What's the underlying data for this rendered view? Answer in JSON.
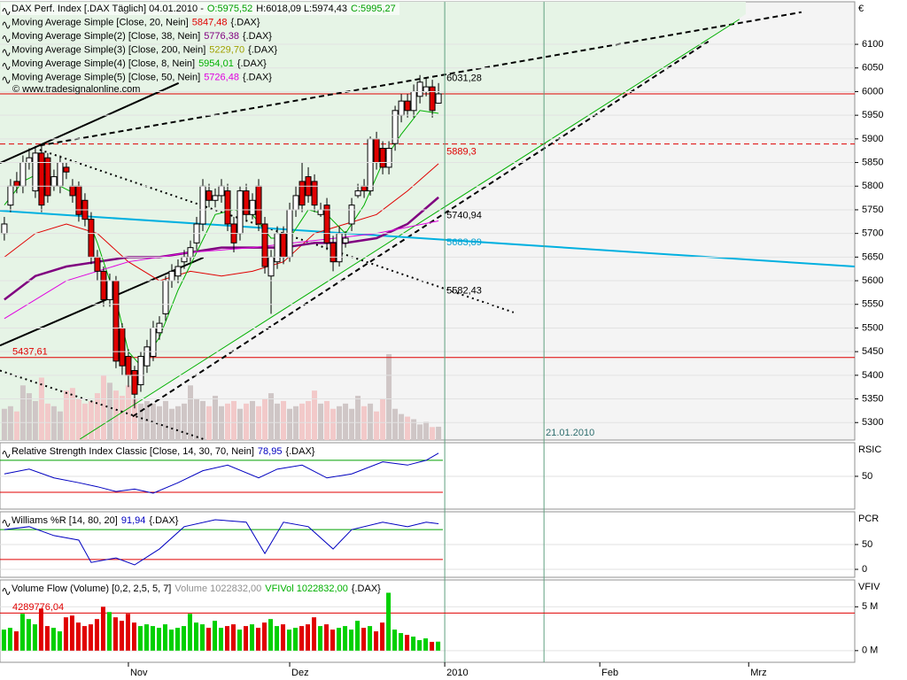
{
  "chart_data": [
    {
      "type": "candlestick",
      "title_parts": [
        {
          "text": "DAX Perf. Index [.DAX Täglich] 04.01.2010 -",
          "color": "#000000"
        },
        {
          "text": "O:5975,52",
          "color": "#00a000"
        },
        {
          "text": "H:6018,09 L:5974,43",
          "color": "#000000"
        },
        {
          "text": "C:5995,27",
          "color": "#00a000"
        }
      ],
      "source": "© www.tradesignalonline.com",
      "axis_label": "€",
      "xlim": [
        -0.7,
        137.1
      ],
      "ylim": [
        5263,
        6190
      ],
      "yticks": [
        5300,
        5350,
        5400,
        5450,
        5500,
        5550,
        5600,
        5650,
        5700,
        5750,
        5800,
        5850,
        5900,
        5950,
        6000,
        6050,
        6100
      ],
      "grid": true,
      "up_color": "#ffffff",
      "down_color": "#e00000",
      "open": [
        5700,
        5760,
        5810,
        5800,
        5850,
        5790,
        5870,
        5860,
        5800,
        5800,
        5840,
        5800,
        5800,
        5770,
        5730,
        5650,
        5620,
        5560,
        5600,
        5500,
        5440,
        5410,
        5380,
        5420,
        5440,
        5490,
        5530,
        5600,
        5610,
        5640,
        5650,
        5680,
        5720,
        5790,
        5770,
        5780,
        5790,
        5720,
        5700,
        5790,
        5740,
        5800,
        5720,
        5610,
        5640,
        5700,
        5650,
        5750,
        5810,
        5820,
        5810,
        5740,
        5760,
        5680,
        5640,
        5680,
        5720,
        5780,
        5800,
        5790,
        5900,
        5880,
        5840,
        5890,
        5950,
        5980,
        5960,
        5990,
        6000,
        6010,
        5975.52
      ],
      "high": [
        5735,
        5815,
        5830,
        5865,
        5880,
        5885,
        5885,
        5870,
        5835,
        5865,
        5850,
        5815,
        5810,
        5785,
        5745,
        5665,
        5630,
        5615,
        5610,
        5510,
        5455,
        5420,
        5450,
        5475,
        5515,
        5525,
        5610,
        5635,
        5645,
        5665,
        5685,
        5735,
        5815,
        5805,
        5795,
        5815,
        5805,
        5735,
        5800,
        5805,
        5785,
        5815,
        5735,
        5665,
        5715,
        5715,
        5765,
        5800,
        5850,
        5840,
        5825,
        5765,
        5775,
        5695,
        5715,
        5705,
        5775,
        5805,
        5815,
        5905,
        5915,
        5895,
        5895,
        5970,
        5995,
        5995,
        6015,
        6035,
        6030,
        6025,
        6018.09
      ],
      "low": [
        5685,
        5745,
        5785,
        5785,
        5835,
        5775,
        5745,
        5765,
        5790,
        5785,
        5815,
        5765,
        5725,
        5715,
        5635,
        5600,
        5545,
        5545,
        5415,
        5400,
        5375,
        5330,
        5365,
        5405,
        5430,
        5475,
        5515,
        5585,
        5595,
        5625,
        5640,
        5665,
        5705,
        5755,
        5755,
        5765,
        5705,
        5660,
        5685,
        5725,
        5730,
        5705,
        5615,
        5530,
        5625,
        5635,
        5640,
        5735,
        5745,
        5765,
        5745,
        5735,
        5665,
        5620,
        5630,
        5670,
        5705,
        5775,
        5775,
        5780,
        5835,
        5825,
        5825,
        5875,
        5935,
        5945,
        5945,
        5975,
        5990,
        5945,
        5974.43
      ],
      "close": [
        5720,
        5800,
        5800,
        5850,
        5860,
        5870,
        5760,
        5780,
        5820,
        5850,
        5830,
        5780,
        5740,
        5730,
        5650,
        5620,
        5560,
        5600,
        5430,
        5420,
        5400,
        5360,
        5440,
        5460,
        5500,
        5510,
        5600,
        5620,
        5630,
        5650,
        5670,
        5720,
        5800,
        5770,
        5780,
        5800,
        5720,
        5680,
        5790,
        5740,
        5770,
        5720,
        5630,
        5650,
        5700,
        5650,
        5750,
        5780,
        5760,
        5780,
        5760,
        5750,
        5680,
        5640,
        5700,
        5690,
        5760,
        5790,
        5790,
        5900,
        5850,
        5840,
        5880,
        5960,
        5980,
        5960,
        6000,
        6020,
        6010,
        5960,
        5995.27
      ],
      "legend": [
        {
          "name": "Moving Average Simple [Close, 20, Nein]",
          "legend_value": "5847,48",
          "suffix": "{.DAX}",
          "color": "#e00000",
          "x": [
            0,
            5,
            10,
            15,
            20,
            25,
            30,
            35,
            40,
            45,
            50,
            55,
            60,
            65,
            70
          ],
          "values": [
            5650,
            5700,
            5720,
            5700,
            5640,
            5600,
            5620,
            5610,
            5620,
            5640,
            5700,
            5720,
            5740,
            5790,
            5847.48
          ]
        },
        {
          "name": "Moving Average Simple(2) [Close, 38, Nein]",
          "legend_value": "5776,38",
          "suffix": "{.DAX}",
          "color": "#800080",
          "x": [
            0,
            5,
            10,
            15,
            20,
            25,
            30,
            35,
            40,
            45,
            50,
            55,
            60,
            65,
            70
          ],
          "values": [
            5560,
            5610,
            5630,
            5640,
            5650,
            5650,
            5660,
            5670,
            5670,
            5670,
            5680,
            5680,
            5690,
            5720,
            5776.38
          ]
        },
        {
          "name": "Moving Average Simple(3) [Close, 200, Nein]",
          "legend_value": "5229,70",
          "suffix": "{.DAX}",
          "color": "#a0a000",
          "x": [],
          "values": []
        },
        {
          "name": "Moving Average Simple(4) [Close, 8, Nein]",
          "legend_value": "5954,01",
          "suffix": "{.DAX}",
          "color": "#00b000",
          "x": [
            0,
            3,
            6,
            9,
            12,
            15,
            18,
            20,
            22,
            25,
            28,
            31,
            34,
            37,
            40,
            43,
            46,
            49,
            52,
            55,
            58,
            61,
            64,
            67,
            70
          ],
          "values": [
            5760,
            5810,
            5830,
            5800,
            5780,
            5680,
            5560,
            5450,
            5420,
            5480,
            5580,
            5660,
            5740,
            5750,
            5740,
            5690,
            5690,
            5750,
            5740,
            5700,
            5760,
            5850,
            5910,
            5960,
            5954.01
          ]
        },
        {
          "name": "Moving Average Simple(5) [Close, 50, Nein]",
          "legend_value": "5726,48",
          "suffix": "{.DAX}",
          "color": "#e000e0",
          "x": [
            0,
            10,
            20,
            30,
            40,
            50,
            60,
            70
          ],
          "values": [
            5520,
            5600,
            5640,
            5660,
            5670,
            5685,
            5700,
            5726.48
          ]
        }
      ],
      "trendlines": [
        {
          "x": [
            -0.7,
            28.1
          ],
          "values": [
            5849,
            6018
          ],
          "color": "#000000",
          "style": "solid"
        },
        {
          "x": [
            -0.7,
            32.1
          ],
          "values": [
            5463,
            5649
          ],
          "color": "#000000",
          "style": "solid"
        },
        {
          "x": [
            5.7,
            128.5
          ],
          "values": [
            5886,
            6168
          ],
          "color": "#000000",
          "style": "dashed"
        },
        {
          "x": [
            20.7,
            113.5
          ],
          "values": [
            5313,
            6106
          ],
          "color": "#000000",
          "style": "dashed"
        },
        {
          "x": [
            12.2,
            118.5
          ],
          "values": [
            5265,
            6153
          ],
          "color": "#00b000",
          "style": "thin"
        },
        {
          "x": [
            5.7,
            82.1
          ],
          "values": [
            5877,
            5533
          ],
          "color": "#000000",
          "style": "dotted"
        },
        {
          "x": [
            -0.7,
            32.1
          ],
          "values": [
            5410,
            5265
          ],
          "color": "#000000",
          "style": "dotted"
        },
        {
          "x": [
            -0.7,
            137.1
          ],
          "values": [
            5748,
            5630
          ],
          "color": "#00b0e0",
          "style": "solid"
        }
      ],
      "labels": [
        {
          "x": 71,
          "value": 6031.28,
          "label": "6031,28",
          "color": "#000000"
        },
        {
          "x": 71,
          "value": 5740.94,
          "label": "5740,94",
          "color": "#000000"
        },
        {
          "x": 71,
          "value": 5683.89,
          "label": "5683,89",
          "color": "#00a0d0"
        },
        {
          "x": 71,
          "value": 5582.43,
          "label": "5582,43",
          "color": "#000000"
        }
      ],
      "hlines": [
        {
          "value": 5995.27,
          "color": "#e00000",
          "style": "solid"
        },
        {
          "value": 5889.3,
          "label": "5889,3",
          "color": "#e00000",
          "style": "dashed"
        },
        {
          "value": 5437.61,
          "label": "5437,61",
          "color": "#e00000",
          "style": "solid"
        }
      ],
      "vlines": [
        {
          "x": 71,
          "color": "#60a080"
        },
        {
          "x": 87,
          "label": "21.01.2010",
          "color": "#60a080"
        }
      ]
    },
    {
      "type": "line",
      "title_parts": [
        {
          "text": "Relative Strength Index Classic [Close, 14, 30, 70, Nein]",
          "color": "#000000"
        },
        {
          "text": "78,95",
          "color": "#0000c0"
        },
        {
          "text": "{.DAX}",
          "color": "#000000"
        }
      ],
      "axis_label": "RSIC",
      "ylim": [
        9,
        92
      ],
      "yticks": [
        50
      ],
      "levels": [
        {
          "value": 70,
          "color": "#00a000"
        },
        {
          "value": 30,
          "color": "#e00000"
        }
      ],
      "series": [
        {
          "color": "#0000c0",
          "x": [
            0,
            4,
            8,
            12,
            15,
            18,
            21,
            24,
            28,
            32,
            36,
            41,
            44,
            48,
            52,
            56,
            61,
            65,
            68,
            70
          ],
          "values": [
            53,
            59,
            48,
            42,
            37,
            31,
            34,
            29,
            42,
            57,
            64,
            48,
            59,
            64,
            48,
            53,
            68,
            64,
            70,
            78.95
          ]
        }
      ]
    },
    {
      "type": "line",
      "title_parts": [
        {
          "text": "Williams %R [14, 80, 20]",
          "color": "#000000"
        },
        {
          "text": "91,94",
          "color": "#0000c0"
        },
        {
          "text": "{.DAX}",
          "color": "#000000"
        }
      ],
      "axis_label": "PCR",
      "ylim": [
        -16,
        116
      ],
      "yticks": [
        50,
        0
      ],
      "levels": [
        {
          "value": 80,
          "color": "#00a000"
        },
        {
          "value": 20,
          "color": "#e00000"
        }
      ],
      "series": [
        {
          "color": "#0000c0",
          "x": [
            0,
            4,
            8,
            12,
            14,
            18,
            21,
            25,
            29,
            34,
            39,
            42,
            45,
            49,
            53,
            56,
            61,
            65,
            68,
            70
          ],
          "values": [
            80,
            86,
            68,
            59,
            14,
            23,
            9,
            41,
            86,
            100,
            95,
            32,
            95,
            86,
            41,
            80,
            95,
            86,
            95,
            91.94
          ]
        }
      ]
    },
    {
      "type": "bar",
      "title_parts": [
        {
          "text": "Volume Flow (Volume) [0,2, 2,5, 5, 7]",
          "color": "#000000"
        },
        {
          "text": "Volume 1022832,00",
          "color": "#909090"
        },
        {
          "text": "VFIVol 1022832,00",
          "color": "#00b000"
        },
        {
          "text": "{.DAX}",
          "color": "#000000"
        }
      ],
      "axis_label": "VFIV",
      "ylim": [
        -1330000,
        8060000
      ],
      "yticks": [
        {
          "value": 5000000,
          "label": "5 M"
        },
        {
          "value": 0,
          "label": "0 M"
        }
      ],
      "up_color": "#00d000",
      "down_color": "#e00000",
      "levels": [
        {
          "value": 4289776.04,
          "label": "4289776,04",
          "color": "#e00000"
        }
      ],
      "values": [
        2400000,
        2600000,
        2200000,
        4200000,
        3600000,
        3000000,
        4800000,
        2800000,
        2600000,
        2200000,
        3800000,
        4000000,
        3200000,
        2800000,
        3000000,
        3600000,
        5000000,
        4400000,
        3800000,
        3400000,
        4200000,
        3200000,
        2800000,
        3000000,
        2800000,
        2600000,
        3000000,
        2400000,
        2600000,
        2800000,
        4200000,
        3200000,
        3000000,
        2600000,
        3400000,
        2600000,
        2800000,
        3000000,
        2400000,
        2800000,
        3000000,
        2600000,
        3200000,
        3600000,
        2800000,
        3000000,
        2400000,
        2600000,
        2800000,
        3000000,
        3800000,
        2800000,
        3000000,
        2400000,
        2600000,
        2800000,
        2400000,
        3400000,
        2600000,
        2800000,
        2200000,
        3200000,
        6600000,
        2400000,
        2000000,
        1800000,
        1600000,
        1200000,
        1400000,
        1000000,
        1022832
      ],
      "xticks": [
        {
          "value": 20,
          "label": "Nov"
        },
        {
          "value": 46,
          "label": "Dez"
        },
        {
          "value": 71,
          "label": "2010"
        },
        {
          "value": 96,
          "label": "Feb"
        },
        {
          "value": 120,
          "label": "Mrz"
        }
      ]
    }
  ]
}
